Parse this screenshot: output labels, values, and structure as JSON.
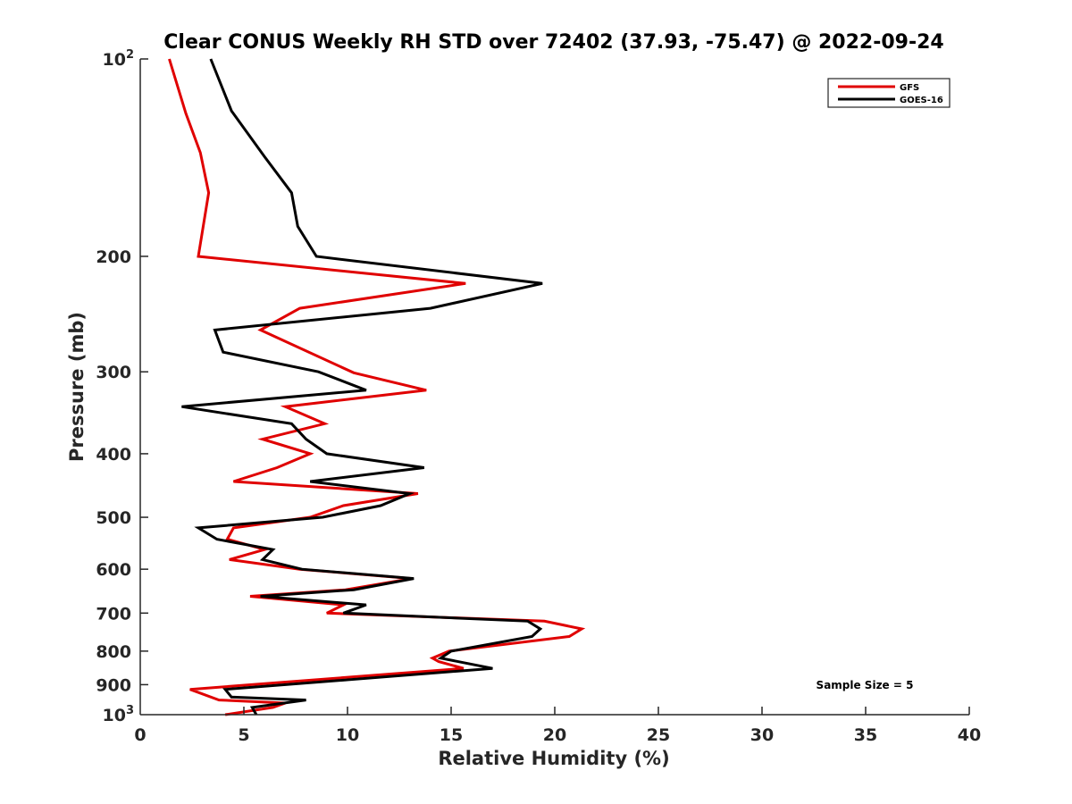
{
  "chart_data": {
    "type": "line",
    "title": "Clear CONUS Weekly RH STD over 72402 (37.93, -75.47) @ 2022-09-24",
    "xlabel": "Relative Humidity (%)",
    "ylabel": "Pressure (mb)",
    "xlim": [
      0,
      40
    ],
    "ylim": [
      100,
      1000
    ],
    "yscale": "log",
    "yreversed": true,
    "grid": false,
    "legend_position": "top-right",
    "xticks": [
      0,
      5,
      10,
      15,
      20,
      25,
      30,
      35,
      40
    ],
    "xtick_labels": [
      "0",
      "5",
      "10",
      "15",
      "20",
      "25",
      "30",
      "35",
      "40"
    ],
    "yticks": [
      100,
      200,
      300,
      400,
      500,
      600,
      700,
      800,
      900,
      1000
    ],
    "ytick_labels": [
      {
        "base": "10",
        "sup": "2"
      },
      {
        "base": "200",
        "sup": ""
      },
      {
        "base": "300",
        "sup": ""
      },
      {
        "base": "400",
        "sup": ""
      },
      {
        "base": "500",
        "sup": ""
      },
      {
        "base": "600",
        "sup": ""
      },
      {
        "base": "700",
        "sup": ""
      },
      {
        "base": "800",
        "sup": ""
      },
      {
        "base": "900",
        "sup": ""
      },
      {
        "base": "10",
        "sup": "3"
      }
    ],
    "annotation": "Sample Size = 5",
    "series": [
      {
        "name": "GFS",
        "color": "#e00000",
        "points": [
          [
            1.4,
            100
          ],
          [
            2.2,
            121
          ],
          [
            2.9,
            139
          ],
          [
            3.3,
            160
          ],
          [
            2.8,
            200
          ],
          [
            15.7,
            220
          ],
          [
            7.7,
            240
          ],
          [
            5.8,
            259
          ],
          [
            10.3,
            301
          ],
          [
            13.8,
            320
          ],
          [
            7.0,
            339
          ],
          [
            8.9,
            360
          ],
          [
            5.9,
            380
          ],
          [
            8.2,
            400
          ],
          [
            6.6,
            420
          ],
          [
            4.5,
            441
          ],
          [
            13.4,
            460
          ],
          [
            9.8,
            480
          ],
          [
            8.2,
            500
          ],
          [
            4.5,
            519
          ],
          [
            4.2,
            540
          ],
          [
            6.0,
            560
          ],
          [
            4.3,
            580
          ],
          [
            7.7,
            600
          ],
          [
            13.1,
            620
          ],
          [
            9.9,
            645
          ],
          [
            5.3,
            660
          ],
          [
            9.8,
            680
          ],
          [
            9.0,
            700
          ],
          [
            19.5,
            720
          ],
          [
            21.3,
            740
          ],
          [
            20.7,
            760
          ],
          [
            14.9,
            800
          ],
          [
            14.1,
            820
          ],
          [
            14.4,
            830
          ],
          [
            15.6,
            850
          ],
          [
            2.4,
            915
          ],
          [
            3.8,
            950
          ],
          [
            7.0,
            960
          ],
          [
            6.4,
            975
          ],
          [
            4.1,
            1000
          ]
        ]
      },
      {
        "name": "GOES-16",
        "color": "#000000",
        "points": [
          [
            3.4,
            100
          ],
          [
            4.4,
            120
          ],
          [
            6.0,
            141
          ],
          [
            7.3,
            160
          ],
          [
            7.6,
            180
          ],
          [
            8.5,
            200
          ],
          [
            19.4,
            220
          ],
          [
            14.0,
            240
          ],
          [
            3.6,
            259
          ],
          [
            4.0,
            280
          ],
          [
            8.6,
            300
          ],
          [
            10.9,
            320
          ],
          [
            2.0,
            339
          ],
          [
            7.3,
            360
          ],
          [
            8.0,
            380
          ],
          [
            9.0,
            400
          ],
          [
            13.7,
            420
          ],
          [
            8.2,
            441
          ],
          [
            13.0,
            460
          ],
          [
            11.6,
            480
          ],
          [
            8.8,
            500
          ],
          [
            2.8,
            519
          ],
          [
            3.7,
            540
          ],
          [
            6.4,
            560
          ],
          [
            5.9,
            580
          ],
          [
            7.8,
            600
          ],
          [
            13.2,
            620
          ],
          [
            10.3,
            645
          ],
          [
            5.8,
            660
          ],
          [
            10.9,
            680
          ],
          [
            9.8,
            700
          ],
          [
            18.7,
            720
          ],
          [
            19.3,
            740
          ],
          [
            18.9,
            760
          ],
          [
            15.0,
            800
          ],
          [
            14.5,
            820
          ],
          [
            17.0,
            850
          ],
          [
            4.1,
            915
          ],
          [
            4.4,
            940
          ],
          [
            8.0,
            950
          ],
          [
            5.4,
            975
          ],
          [
            5.6,
            1000
          ]
        ]
      }
    ]
  }
}
